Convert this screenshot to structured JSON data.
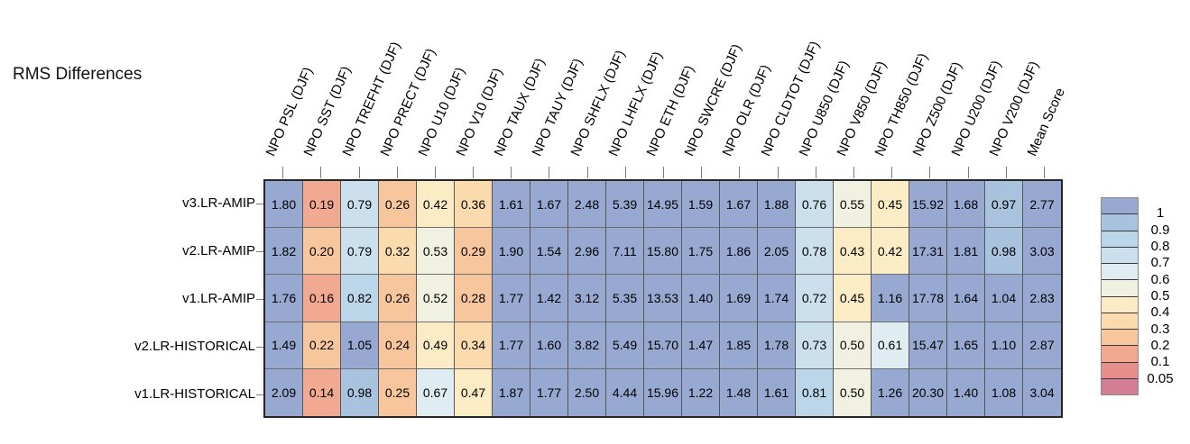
{
  "chart_data": {
    "type": "heatmap",
    "title": "RMS Differences",
    "season": "DJF",
    "columns": [
      "NPO PSL (DJF)",
      "NPO SST (DJF)",
      "NPO TREFHT (DJF)",
      "NPO PRECT (DJF)",
      "NPO U10 (DJF)",
      "NPO V10 (DJF)",
      "NPO TAUX (DJF)",
      "NPO TAUY (DJF)",
      "NPO SHFLX (DJF)",
      "NPO LHFLX (DJF)",
      "NPO ETH (DJF)",
      "NPO SWCRE (DJF)",
      "NPO OLR (DJF)",
      "NPO CLDTOT (DJF)",
      "NPO U850 (DJF)",
      "NPO V850 (DJF)",
      "NPO TH850 (DJF)",
      "NPO Z500 (DJF)",
      "NPO U200 (DJF)",
      "NPO V200 (DJF)",
      "Mean Score"
    ],
    "rows": [
      "v3.LR-AMIP",
      "v2.LR-AMIP",
      "v1.LR-AMIP",
      "v2.LR-HISTORICAL",
      "v1.LR-HISTORICAL"
    ],
    "values": [
      [
        "1.80",
        "0.19",
        "0.79",
        "0.26",
        "0.42",
        "0.36",
        "1.61",
        "1.67",
        "2.48",
        "5.39",
        "14.95",
        "1.59",
        "1.67",
        "1.88",
        "0.76",
        "0.55",
        "0.45",
        "15.92",
        "1.68",
        "0.97",
        "2.77"
      ],
      [
        "1.82",
        "0.20",
        "0.79",
        "0.32",
        "0.53",
        "0.29",
        "1.90",
        "1.54",
        "2.96",
        "7.11",
        "15.80",
        "1.75",
        "1.86",
        "2.05",
        "0.78",
        "0.43",
        "0.42",
        "17.31",
        "1.81",
        "0.98",
        "3.03"
      ],
      [
        "1.76",
        "0.16",
        "0.82",
        "0.26",
        "0.52",
        "0.28",
        "1.77",
        "1.42",
        "3.12",
        "5.35",
        "13.53",
        "1.40",
        "1.69",
        "1.74",
        "0.72",
        "0.45",
        "1.16",
        "17.78",
        "1.64",
        "1.04",
        "2.83"
      ],
      [
        "1.49",
        "0.22",
        "1.05",
        "0.24",
        "0.49",
        "0.34",
        "1.77",
        "1.60",
        "3.82",
        "5.49",
        "15.70",
        "1.47",
        "1.85",
        "1.78",
        "0.73",
        "0.50",
        "0.61",
        "15.47",
        "1.65",
        "1.10",
        "2.87"
      ],
      [
        "2.09",
        "0.14",
        "0.98",
        "0.25",
        "0.67",
        "0.47",
        "1.87",
        "1.77",
        "2.50",
        "4.44",
        "15.96",
        "1.22",
        "1.48",
        "1.61",
        "0.81",
        "0.50",
        "1.26",
        "20.30",
        "1.40",
        "1.08",
        "3.04"
      ]
    ],
    "legend": {
      "position": "right",
      "labels": [
        "1",
        "0.9",
        "0.8",
        "0.7",
        "0.6",
        "0.5",
        "0.4",
        "0.3",
        "0.2",
        "0.1",
        "0.05"
      ],
      "thresholds": [
        1,
        0.9,
        0.8,
        0.7,
        0.6,
        0.5,
        0.4,
        0.3,
        0.2,
        0.1,
        0.05
      ],
      "band_colors": [
        "#97a8d1",
        "#a9c2dd",
        "#bad6e8",
        "#cbe0ec",
        "#dfedf3",
        "#f1f1e2",
        "#fbecc5",
        "#fbdbae",
        "#f8c69c",
        "#f2a992",
        "#e78f8c",
        "#d27e95"
      ]
    },
    "colors": {
      "background": "#ffffff",
      "text": "#000000",
      "grid_border": "#262626",
      "cell_divider": "#5c5c5c",
      "tick": "#7c7c7c"
    }
  }
}
